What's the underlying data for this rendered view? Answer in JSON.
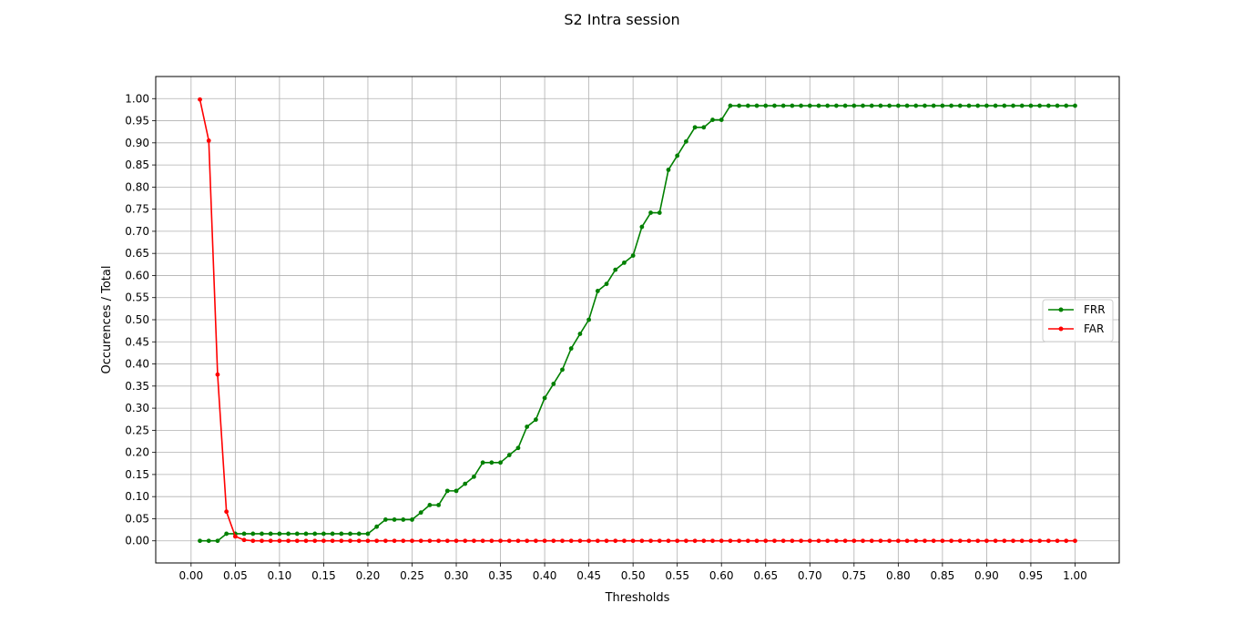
{
  "chart_data": {
    "type": "line",
    "title": "S2 Intra session",
    "xlabel": "Thresholds",
    "ylabel": "Occurences / Total",
    "xlim": [
      -0.04,
      1.05
    ],
    "ylim": [
      -0.05,
      1.05
    ],
    "xticks": [
      "0.00",
      "0.05",
      "0.10",
      "0.15",
      "0.20",
      "0.25",
      "0.30",
      "0.35",
      "0.40",
      "0.45",
      "0.50",
      "0.55",
      "0.60",
      "0.65",
      "0.70",
      "0.75",
      "0.80",
      "0.85",
      "0.90",
      "0.95",
      "1.00"
    ],
    "yticks": [
      "0.00",
      "0.05",
      "0.10",
      "0.15",
      "0.20",
      "0.25",
      "0.30",
      "0.35",
      "0.40",
      "0.45",
      "0.50",
      "0.55",
      "0.60",
      "0.65",
      "0.70",
      "0.75",
      "0.80",
      "0.85",
      "0.90",
      "0.95",
      "1.00"
    ],
    "grid": true,
    "legend_position": "center-right",
    "x": [
      0.01,
      0.02,
      0.03,
      0.04,
      0.05,
      0.06,
      0.07,
      0.08,
      0.09,
      0.1,
      0.11,
      0.12,
      0.13,
      0.14,
      0.15,
      0.16,
      0.17,
      0.18,
      0.19,
      0.2,
      0.21,
      0.22,
      0.23,
      0.24,
      0.25,
      0.26,
      0.27,
      0.28,
      0.29,
      0.3,
      0.31,
      0.32,
      0.33,
      0.34,
      0.35,
      0.36,
      0.37,
      0.38,
      0.39,
      0.4,
      0.41,
      0.42,
      0.43,
      0.44,
      0.45,
      0.46,
      0.47,
      0.48,
      0.49,
      0.5,
      0.51,
      0.52,
      0.53,
      0.54,
      0.55,
      0.56,
      0.57,
      0.58,
      0.59,
      0.6,
      0.61,
      0.62,
      0.63,
      0.64,
      0.65,
      0.66,
      0.67,
      0.68,
      0.69,
      0.7,
      0.71,
      0.72,
      0.73,
      0.74,
      0.75,
      0.76,
      0.77,
      0.78,
      0.79,
      0.8,
      0.81,
      0.82,
      0.83,
      0.84,
      0.85,
      0.86,
      0.87,
      0.88,
      0.89,
      0.9,
      0.91,
      0.92,
      0.93,
      0.94,
      0.95,
      0.96,
      0.97,
      0.98,
      0.99,
      1.0
    ],
    "series": [
      {
        "name": "FRR",
        "color": "#008000",
        "values": [
          0,
          0,
          0,
          0.016,
          0.016,
          0.016,
          0.016,
          0.016,
          0.016,
          0.016,
          0.016,
          0.016,
          0.016,
          0.016,
          0.016,
          0.016,
          0.016,
          0.016,
          0.016,
          0.016,
          0.032,
          0.048,
          0.048,
          0.048,
          0.048,
          0.064,
          0.081,
          0.081,
          0.113,
          0.113,
          0.129,
          0.145,
          0.177,
          0.177,
          0.177,
          0.194,
          0.21,
          0.258,
          0.274,
          0.323,
          0.355,
          0.387,
          0.435,
          0.468,
          0.5,
          0.565,
          0.581,
          0.613,
          0.629,
          0.645,
          0.71,
          0.742,
          0.742,
          0.839,
          0.871,
          0.903,
          0.935,
          0.935,
          0.952,
          0.952,
          0.984,
          0.984,
          0.984,
          0.984,
          0.984,
          0.984,
          0.984,
          0.984,
          0.984,
          0.984,
          0.984,
          0.984,
          0.984,
          0.984,
          0.984,
          0.984,
          0.984,
          0.984,
          0.984,
          0.984,
          0.984,
          0.984,
          0.984,
          0.984,
          0.984,
          0.984,
          0.984,
          0.984,
          0.984,
          0.984,
          0.984,
          0.984,
          0.984,
          0.984,
          0.984,
          0.984,
          0.984,
          0.984,
          0.984,
          0.984
        ]
      },
      {
        "name": "FAR",
        "color": "#ff0000",
        "values": [
          0.998,
          0.905,
          0.376,
          0.066,
          0.01,
          0.002,
          0,
          0,
          0,
          0,
          0,
          0,
          0,
          0,
          0,
          0,
          0,
          0,
          0,
          0,
          0,
          0,
          0,
          0,
          0,
          0,
          0,
          0,
          0,
          0,
          0,
          0,
          0,
          0,
          0,
          0,
          0,
          0,
          0,
          0,
          0,
          0,
          0,
          0,
          0,
          0,
          0,
          0,
          0,
          0,
          0,
          0,
          0,
          0,
          0,
          0,
          0,
          0,
          0,
          0,
          0,
          0,
          0,
          0,
          0,
          0,
          0,
          0,
          0,
          0,
          0,
          0,
          0,
          0,
          0,
          0,
          0,
          0,
          0,
          0,
          0,
          0,
          0,
          0,
          0,
          0,
          0,
          0,
          0,
          0,
          0,
          0,
          0,
          0,
          0,
          0,
          0,
          0,
          0,
          0
        ]
      }
    ]
  }
}
